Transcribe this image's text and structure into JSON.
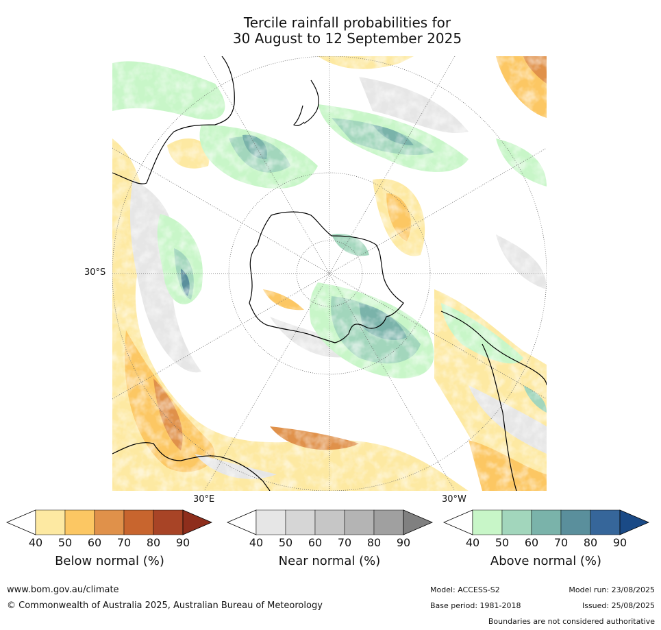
{
  "title": {
    "line1": "Tercile rainfall probabilities for",
    "line2": "30 August to 12 September 2025"
  },
  "map": {
    "projection": "south polar stereographic",
    "lat_labels": [
      "30°S"
    ],
    "lon_labels": [
      "30°E",
      "30°W"
    ],
    "graticule": "dotted grey",
    "coastlines": "black"
  },
  "colorbars": [
    {
      "title": "Below normal (%)",
      "ticks": [
        "40",
        "50",
        "60",
        "70",
        "80",
        "90"
      ],
      "colors": [
        "#ffffff",
        "#fde9a2",
        "#fcc763",
        "#e0914a",
        "#c8652e",
        "#a84426",
        "#8e2e1c"
      ]
    },
    {
      "title": "Near normal (%)",
      "ticks": [
        "40",
        "50",
        "60",
        "70",
        "80",
        "90"
      ],
      "colors": [
        "#ffffff",
        "#e6e6e6",
        "#d6d6d6",
        "#c6c6c6",
        "#b4b4b4",
        "#a0a0a0",
        "#808080"
      ]
    },
    {
      "title": "Above normal (%)",
      "ticks": [
        "40",
        "50",
        "60",
        "70",
        "80",
        "90"
      ],
      "colors": [
        "#ffffff",
        "#c8f6c8",
        "#a2d6bc",
        "#7ab3aa",
        "#5a8f9c",
        "#36669a",
        "#1a4a86"
      ]
    }
  ],
  "footer": {
    "url": "www.bom.gov.au/climate",
    "copyright": "© Commonwealth of Australia 2025, Australian Bureau of Meteorology",
    "model": "Model: ACCESS-S2",
    "model_run": "Model run: 23/08/2025",
    "base_period": "Base period: 1981-2018",
    "issued": "Issued: 25/08/2025",
    "disclaimer": "Boundaries are not considered authoritative"
  }
}
